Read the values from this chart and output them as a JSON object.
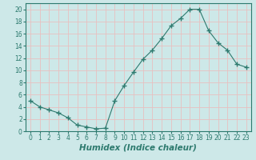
{
  "x": [
    0,
    1,
    2,
    3,
    4,
    5,
    6,
    7,
    8,
    9,
    10,
    11,
    12,
    13,
    14,
    15,
    16,
    17,
    18,
    19,
    20,
    21,
    22,
    23
  ],
  "y": [
    5.0,
    4.0,
    3.5,
    3.0,
    2.2,
    1.0,
    0.7,
    0.4,
    0.5,
    5.0,
    7.5,
    9.7,
    11.8,
    13.3,
    15.2,
    17.3,
    18.5,
    20.0,
    20.0,
    16.5,
    14.5,
    13.3,
    11.0,
    10.5
  ],
  "line_color": "#2d7a6e",
  "marker": "+",
  "marker_size": 4,
  "bg_color": "#cde8e8",
  "grid_color": "#e8c0c0",
  "xlabel": "Humidex (Indice chaleur)",
  "xlim": [
    -0.5,
    23.5
  ],
  "ylim": [
    0,
    21
  ],
  "yticks": [
    0,
    2,
    4,
    6,
    8,
    10,
    12,
    14,
    16,
    18,
    20
  ],
  "xticks": [
    0,
    1,
    2,
    3,
    4,
    5,
    6,
    7,
    8,
    9,
    10,
    11,
    12,
    13,
    14,
    15,
    16,
    17,
    18,
    19,
    20,
    21,
    22,
    23
  ],
  "tick_label_color": "#2d7a6e",
  "spine_color": "#2d7a6e",
  "xlabel_color": "#2d7a6e",
  "xlabel_fontsize": 7.5,
  "tick_fontsize": 5.5
}
